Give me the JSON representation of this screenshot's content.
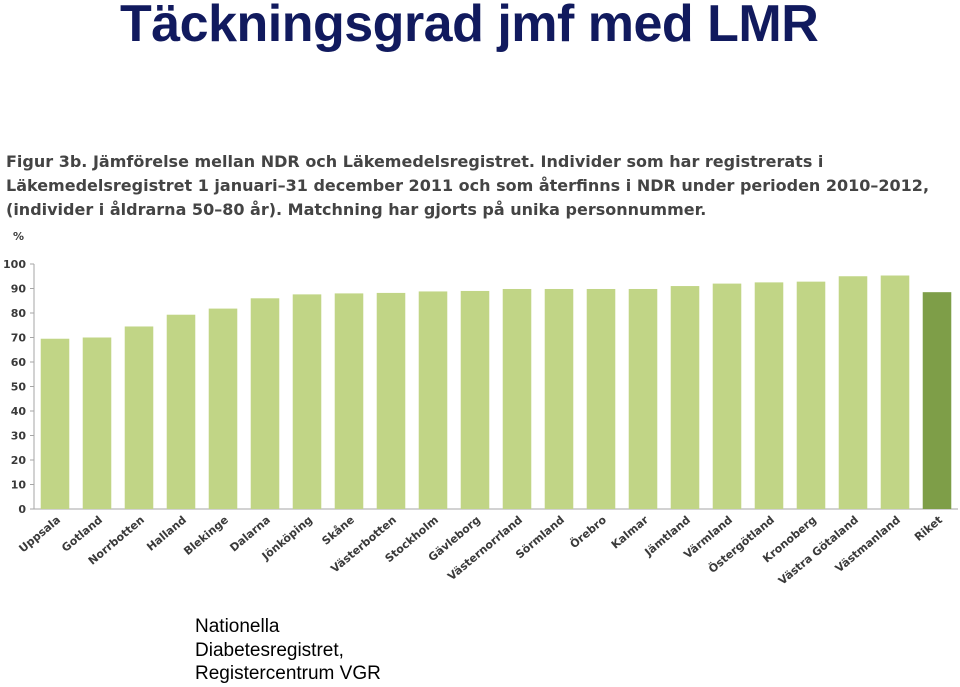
{
  "slide": {
    "title": "Täckningsgrad jmf med LMR",
    "caption": "Figur 3b. Jämförelse mellan NDR och Läkemedelsregistret. Individer som har registrerats i Läkemedelsregistret 1 januari–31 december 2011 och som återfinns i NDR under perioden 2010–2012, (individer i åldrarna 50–80 år). Matchning har gjorts på unika personnummer.",
    "footer_lines": [
      "Nationella",
      "Diabetesregistret,",
      "Registercentrum VGR"
    ]
  },
  "chart_data": {
    "type": "bar",
    "title": "",
    "xlabel": "",
    "ylabel": "%",
    "ylim": [
      0,
      100
    ],
    "yticks": [
      0,
      10,
      20,
      30,
      40,
      50,
      60,
      70,
      80,
      90,
      100
    ],
    "grid": false,
    "categories": [
      "Uppsala",
      "Gotland",
      "Norrbotten",
      "Halland",
      "Blekinge",
      "Dalarna",
      "Jönköping",
      "Skåne",
      "Västerbotten",
      "Stockholm",
      "Gävleborg",
      "Västernorrland",
      "Sörmland",
      "Örebro",
      "Kalmar",
      "Jämtland",
      "Värmland",
      "Östergötland",
      "Kronoberg",
      "Västra Götaland",
      "Västmanland",
      "Riket"
    ],
    "values": [
      69.5,
      70,
      74.5,
      79.3,
      81.8,
      86,
      87.6,
      88,
      88.2,
      88.8,
      89,
      89.8,
      89.8,
      89.8,
      89.8,
      91,
      92,
      92.5,
      92.8,
      95,
      95.3,
      88.5
    ],
    "colors": {
      "region": "#c1d586",
      "national": "#7e9e48",
      "axis": "#a6a6a6",
      "text": "#3a3a3a"
    },
    "highlight_category": "Riket"
  }
}
